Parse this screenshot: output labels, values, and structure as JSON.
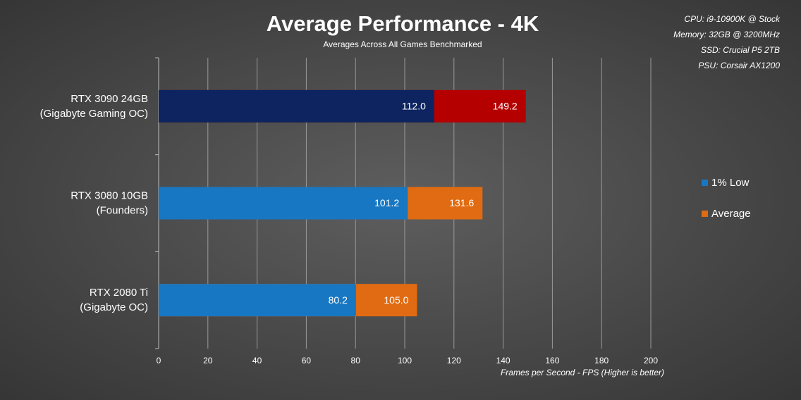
{
  "chart_data": {
    "type": "bar",
    "orientation": "horizontal",
    "overlap": true,
    "title": "Average Performance - 4K",
    "subtitle": "Averages Across All Games Benchmarked",
    "notes": [
      "CPU:  i9-10900K @ Stock",
      "Memory:  32GB @ 3200MHz",
      "SSD:  Crucial P5 2TB",
      "PSU:  Corsair AX1200"
    ],
    "x_label": "Frames per Second - FPS (Higher is better)",
    "categories": [
      [
        "RTX 3090 24GB",
        "(Gigabyte Gaming OC)"
      ],
      [
        "RTX 3080 10GB",
        "(Founders)"
      ],
      [
        "RTX 2080 Ti",
        "(Gigabyte OC)"
      ]
    ],
    "series": [
      {
        "name": "Average",
        "color": "#e06b12",
        "colors": [
          "#b50000",
          "#e06b12",
          "#e06b12"
        ],
        "values": [
          149.2,
          131.6,
          105
        ],
        "value_labels": [
          "149.2",
          "131.6",
          "105.0"
        ]
      },
      {
        "name": "1% Low",
        "color": "#1877c2",
        "colors": [
          "#0e2461",
          "#1877c2",
          "#1877c2"
        ],
        "values": [
          112,
          101.2,
          80.2
        ],
        "value_labels": [
          "112.0",
          "101.2",
          "80.2"
        ]
      }
    ],
    "legend_order": [
      "1% Low",
      "Average"
    ],
    "xlim": [
      0,
      200
    ],
    "xticks": [
      0,
      20,
      40,
      60,
      80,
      100,
      120,
      140,
      160,
      180,
      200
    ],
    "grid": true,
    "legend": "right"
  }
}
